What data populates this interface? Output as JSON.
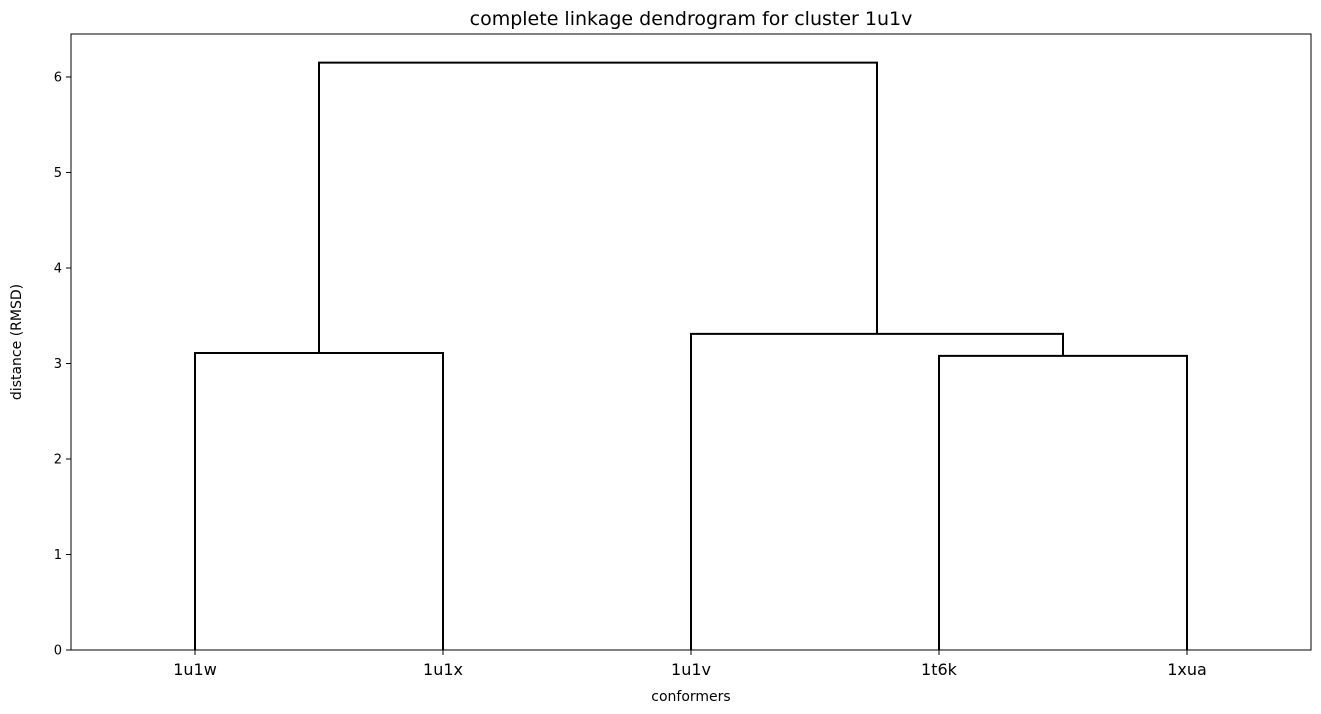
{
  "chart_data": {
    "type": "dendrogram",
    "title": "complete linkage dendrogram for cluster 1u1v",
    "xlabel": "conformers",
    "ylabel": "distance (RMSD)",
    "leaves": [
      "1u1w",
      "1u1x",
      "1u1v",
      "1t6k",
      "1xua"
    ],
    "yticks": [
      0,
      1,
      2,
      3,
      4,
      5,
      6
    ],
    "ylim": [
      0,
      6.45
    ],
    "grid": false,
    "link_color": "#000000",
    "merges": [
      {
        "left": "1u1w",
        "right": "1u1x",
        "height": 3.11
      },
      {
        "left": "1t6k",
        "right": "1xua",
        "height": 3.08
      },
      {
        "left": "1u1v",
        "right": "1t6k+1xua",
        "height": 3.31
      },
      {
        "left": "1u1w+1u1x",
        "right": "1u1v+1t6k+1xua",
        "height": 6.15
      }
    ]
  }
}
